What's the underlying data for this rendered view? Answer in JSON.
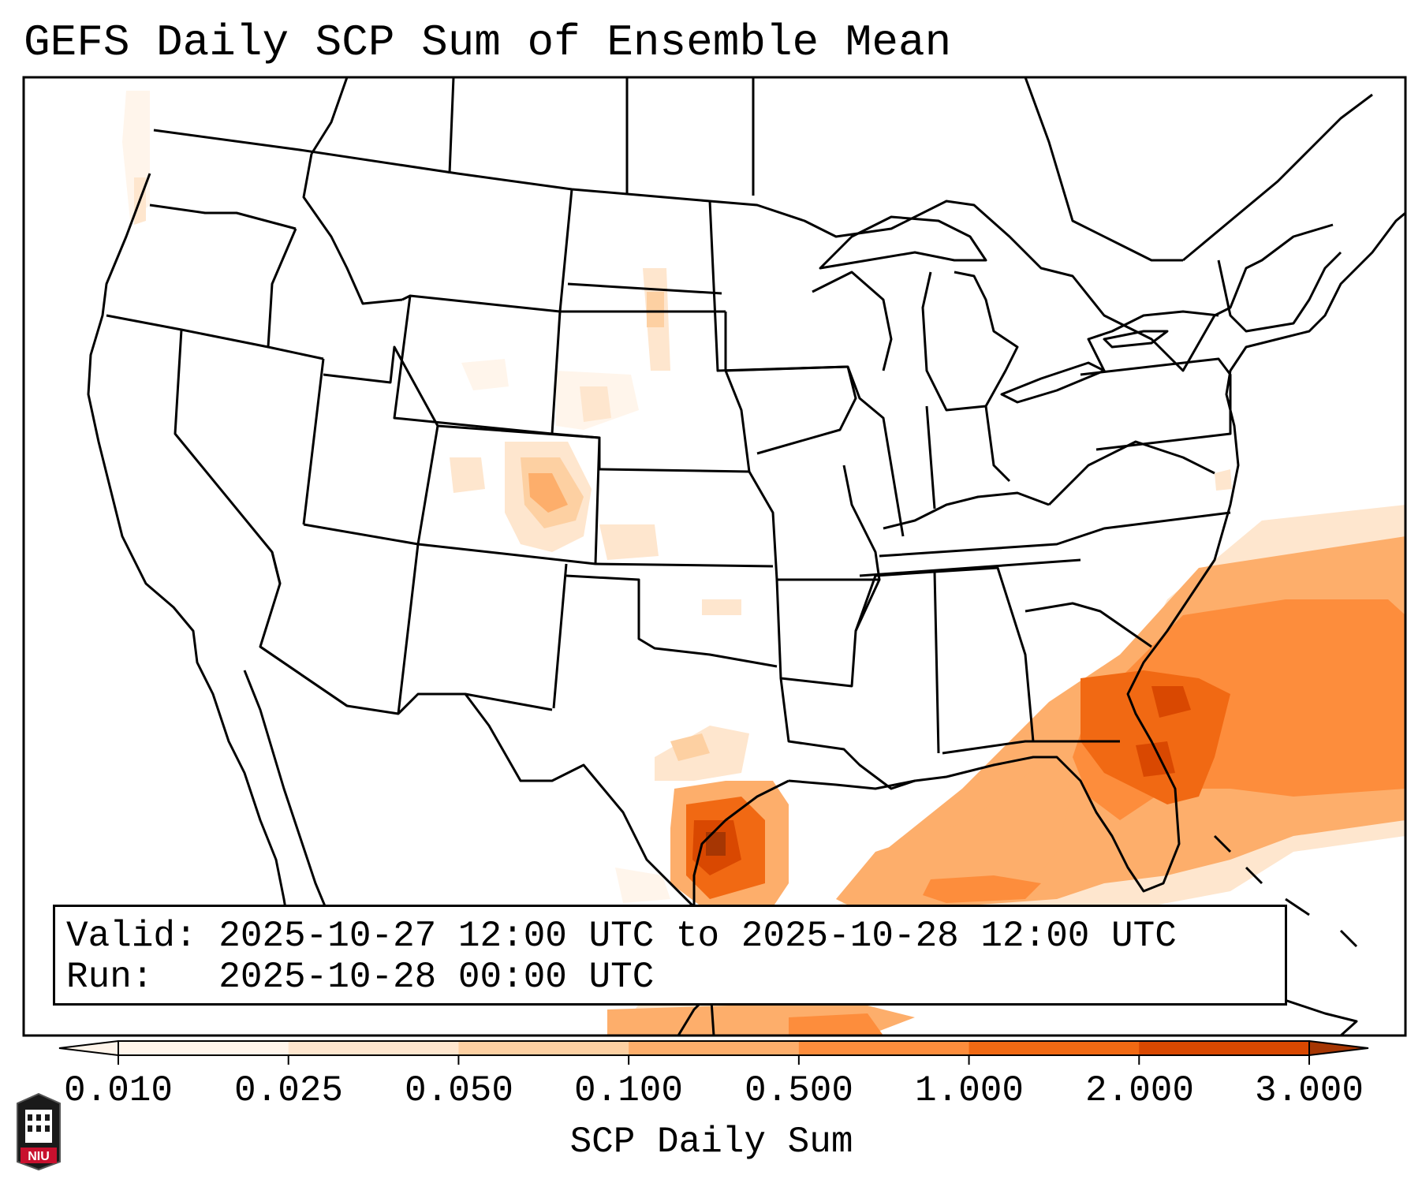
{
  "title": "GEFS Daily SCP Sum of Ensemble Mean",
  "info": {
    "valid": "Valid: 2025-10-27 12:00 UTC to 2025-10-28 12:00 UTC",
    "run": "Run:   2025-10-28 00:00 UTC"
  },
  "colorbar": {
    "label": "SCP Daily Sum",
    "ticks": [
      "0.010",
      "0.025",
      "0.050",
      "0.100",
      "0.500",
      "1.000",
      "2.000",
      "3.000"
    ],
    "colors": [
      "#fff5eb",
      "#fee6ce",
      "#fdd0a2",
      "#fdae6b",
      "#fd8d3c",
      "#f16913",
      "#d94801",
      "#a63603"
    ],
    "extend": "both"
  },
  "logo": {
    "text": "NIU"
  }
}
